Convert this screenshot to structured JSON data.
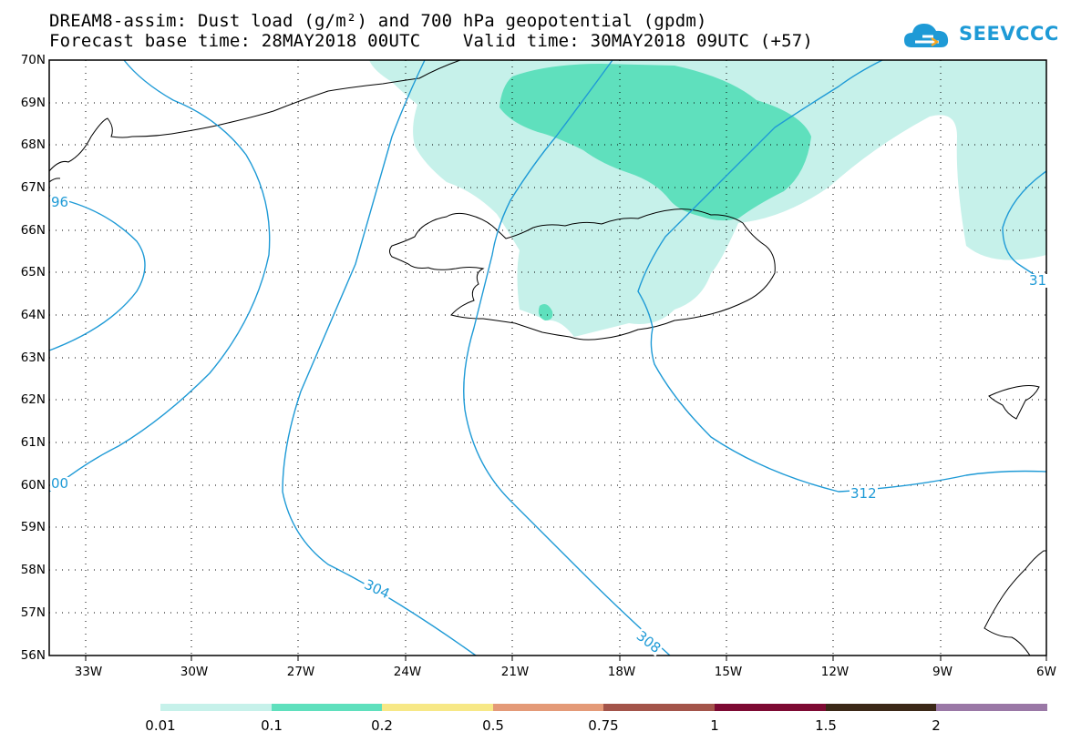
{
  "title": {
    "line1": "DREAM8-assim: Dust load (g/m²) and 700 hPa geopotential (gpdm)",
    "line2": "Forecast base time: 28MAY2018 00UTC    Valid time: 30MAY2018 09UTC (+57)"
  },
  "logo": {
    "text": "SEEVCCC",
    "icon": "cloud-icon",
    "color": "#1e9ad6"
  },
  "map": {
    "lat_labels": [
      "70N",
      "69N",
      "68N",
      "67N",
      "66N",
      "65N",
      "64N",
      "63N",
      "62N",
      "61N",
      "60N",
      "59N",
      "58N",
      "57N",
      "56N"
    ],
    "lon_labels": [
      "33W",
      "30W",
      "27W",
      "24W",
      "21W",
      "18W",
      "15W",
      "12W",
      "9W",
      "6W"
    ],
    "contour_color": "#1e9ad6",
    "contour_labels": [
      {
        "text": "96"
      },
      {
        "text": "00"
      },
      {
        "text": "304"
      },
      {
        "text": "308"
      },
      {
        "text": "312"
      },
      {
        "text": "31"
      }
    ]
  },
  "colorbar": {
    "labels": [
      "0.01",
      "0.1",
      "0.2",
      "0.5",
      "0.75",
      "1",
      "1.5",
      "2"
    ],
    "colors": [
      "#c6f1ea",
      "#5fe0bd",
      "#f7e886",
      "#e49a78",
      "#a3544a",
      "#7d0a33",
      "#3b2817",
      "#9a78a6"
    ]
  }
}
